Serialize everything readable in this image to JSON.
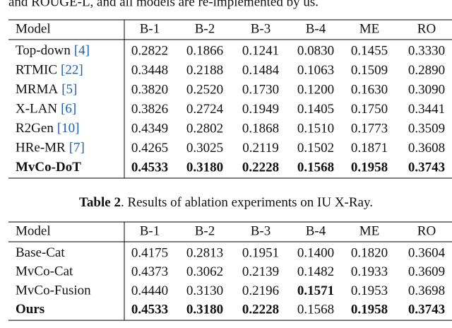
{
  "intro": "and ROUGE-L, and all models are re-implemented by us.",
  "table1": {
    "headers": [
      "Model",
      "B-1",
      "B-2",
      "B-3",
      "B-4",
      "ME",
      "RO"
    ],
    "rows": [
      {
        "model": "Top-down",
        "cite": "[4]",
        "values": [
          "0.2822",
          "0.1866",
          "0.1241",
          "0.0830",
          "0.1455",
          "0.3330"
        ],
        "bold_model": false,
        "bold_values": []
      },
      {
        "model": "RTMIC",
        "cite": "[22]",
        "values": [
          "0.3448",
          "0.2188",
          "0.1484",
          "0.1063",
          "0.1509",
          "0.2890"
        ],
        "bold_model": false,
        "bold_values": []
      },
      {
        "model": "MRMA",
        "cite": "[5]",
        "values": [
          "0.3820",
          "0.2520",
          "0.1730",
          "0.1200",
          "0.1630",
          "0.3090"
        ],
        "bold_model": false,
        "bold_values": []
      },
      {
        "model": "X-LAN",
        "cite": "[6]",
        "values": [
          "0.3826",
          "0.2724",
          "0.1949",
          "0.1405",
          "0.1750",
          "0.3441"
        ],
        "bold_model": false,
        "bold_values": []
      },
      {
        "model": "R2Gen",
        "cite": "[10]",
        "values": [
          "0.4349",
          "0.2802",
          "0.1868",
          "0.1510",
          "0.1773",
          "0.3509"
        ],
        "bold_model": false,
        "bold_values": []
      },
      {
        "model": "HRe-MR",
        "cite": "[7]",
        "values": [
          "0.4265",
          "0.3025",
          "0.2119",
          "0.1502",
          "0.1871",
          "0.3608"
        ],
        "bold_model": false,
        "bold_values": []
      },
      {
        "model": "MvCo-DoT",
        "values": [
          "0.4533",
          "0.3180",
          "0.2228",
          "0.1568",
          "0.1958",
          "0.3743"
        ],
        "bold_model": true,
        "bold_values": [
          0,
          1,
          2,
          3,
          4,
          5
        ]
      }
    ]
  },
  "caption": {
    "label": "Table 2",
    "text": ". Results of ablation experiments on IU X-Ray."
  },
  "table2": {
    "headers": [
      "Model",
      "B-1",
      "B-2",
      "B-3",
      "B-4",
      "ME",
      "RO"
    ],
    "rows": [
      {
        "model": "Base-Cat",
        "values": [
          "0.4175",
          "0.2813",
          "0.1951",
          "0.1400",
          "0.1820",
          "0.3604"
        ],
        "bold_model": false,
        "bold_values": []
      },
      {
        "model": "MvCo-Cat",
        "values": [
          "0.4373",
          "0.3062",
          "0.2139",
          "0.1482",
          "0.1933",
          "0.3609"
        ],
        "bold_model": false,
        "bold_values": []
      },
      {
        "model": "MvCo-Fusion",
        "values": [
          "0.4440",
          "0.3130",
          "0.2196",
          "0.1571",
          "0.1953",
          "0.3698"
        ],
        "bold_model": false,
        "bold_values": [
          3
        ]
      },
      {
        "model": "Ours",
        "values": [
          "0.4533",
          "0.3180",
          "0.2228",
          "0.1568",
          "0.1958",
          "0.3743"
        ],
        "bold_model": true,
        "bold_values": [
          0,
          1,
          2,
          4,
          5
        ]
      }
    ]
  }
}
